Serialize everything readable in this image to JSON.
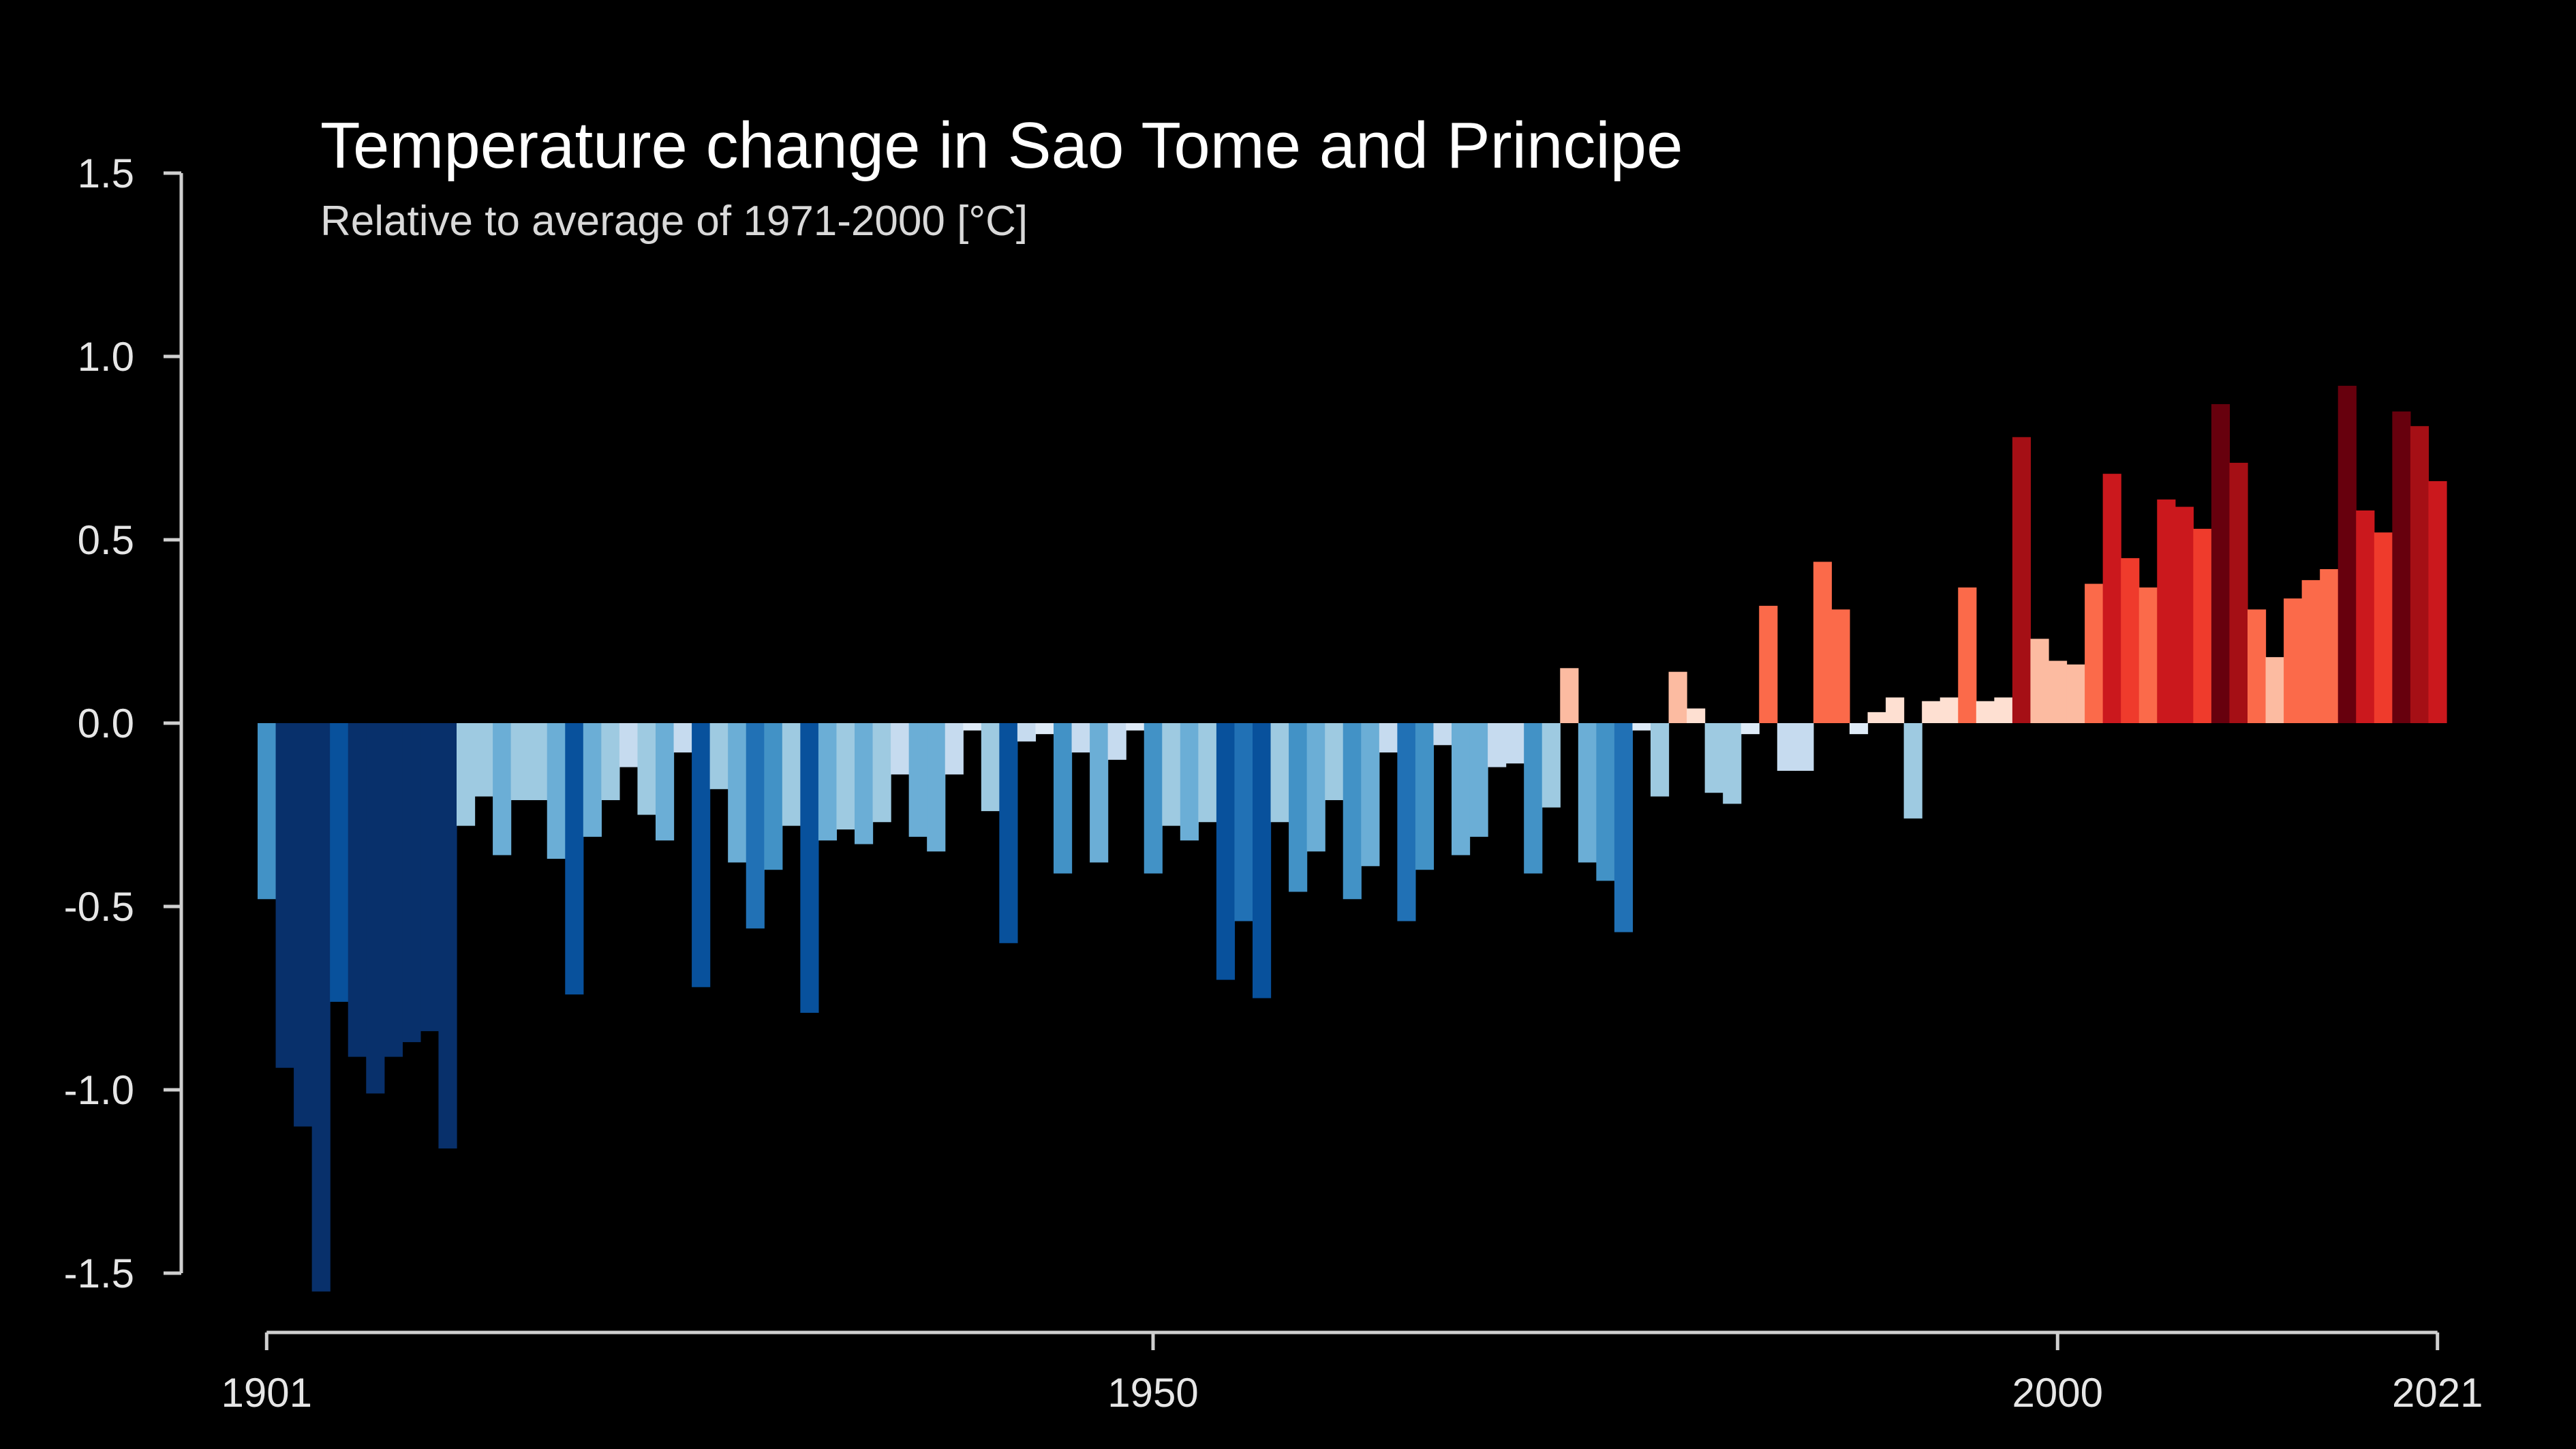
{
  "chart_data": {
    "type": "bar",
    "title": "Temperature change in Sao Tome and Principe",
    "subtitle": "Relative to average of 1971-2000  [°C]",
    "xlabel": "",
    "ylabel": "",
    "ylim": [
      -1.5,
      1.5
    ],
    "y_ticks": [
      {
        "value": 1.5,
        "label": "1.5"
      },
      {
        "value": 1.0,
        "label": "1.0"
      },
      {
        "value": 0.5,
        "label": "0.5"
      },
      {
        "value": 0.0,
        "label": "0.0"
      },
      {
        "value": -0.5,
        "label": "-0.5"
      },
      {
        "value": -1.0,
        "label": "-1.0"
      },
      {
        "value": -1.5,
        "label": "-1.5"
      }
    ],
    "x_ticks": [
      {
        "value": 1901,
        "label": "1901"
      },
      {
        "value": 1950,
        "label": "1950"
      },
      {
        "value": 2000,
        "label": "2000"
      },
      {
        "value": 2021,
        "label": "2021"
      }
    ],
    "grid": false,
    "legend": "none",
    "color_scale": {
      "negative": [
        "#08306b",
        "#08519c",
        "#2171b5",
        "#4292c6",
        "#6baed6",
        "#9ecae1",
        "#c6dbef",
        "#deebf7"
      ],
      "positive": [
        "#fee0d2",
        "#fcbba1",
        "#fc9272",
        "#fb6a4a",
        "#ef3b2c",
        "#cb181d",
        "#a50f15",
        "#67000d"
      ]
    },
    "x": [
      1901,
      1902,
      1903,
      1904,
      1905,
      1906,
      1907,
      1908,
      1909,
      1910,
      1911,
      1912,
      1913,
      1914,
      1915,
      1916,
      1917,
      1918,
      1919,
      1920,
      1921,
      1922,
      1923,
      1924,
      1925,
      1926,
      1927,
      1928,
      1929,
      1930,
      1931,
      1932,
      1933,
      1934,
      1935,
      1936,
      1937,
      1938,
      1939,
      1940,
      1941,
      1942,
      1943,
      1944,
      1945,
      1946,
      1947,
      1948,
      1949,
      1950,
      1951,
      1952,
      1953,
      1954,
      1955,
      1956,
      1957,
      1958,
      1959,
      1960,
      1961,
      1962,
      1963,
      1964,
      1965,
      1966,
      1967,
      1968,
      1969,
      1970,
      1971,
      1972,
      1973,
      1974,
      1975,
      1976,
      1977,
      1978,
      1979,
      1980,
      1981,
      1982,
      1983,
      1984,
      1985,
      1986,
      1987,
      1988,
      1989,
      1990,
      1991,
      1992,
      1993,
      1994,
      1995,
      1996,
      1997,
      1998,
      1999,
      2000,
      2001,
      2002,
      2003,
      2004,
      2005,
      2006,
      2007,
      2008,
      2009,
      2010,
      2011,
      2012,
      2013,
      2014,
      2015,
      2016,
      2017,
      2018,
      2019,
      2020,
      2021
    ],
    "values": [
      -0.48,
      -0.94,
      -1.1,
      -1.55,
      -0.76,
      -0.91,
      -1.01,
      -0.91,
      -0.87,
      -0.84,
      -1.16,
      -0.28,
      -0.2,
      -0.36,
      -0.21,
      -0.21,
      -0.37,
      -0.74,
      -0.31,
      -0.21,
      -0.12,
      -0.25,
      -0.32,
      -0.08,
      -0.72,
      -0.18,
      -0.38,
      -0.56,
      -0.4,
      -0.28,
      -0.79,
      -0.32,
      -0.29,
      -0.33,
      -0.27,
      -0.14,
      -0.31,
      -0.35,
      -0.14,
      -0.02,
      -0.24,
      -0.6,
      -0.05,
      -0.03,
      -0.41,
      -0.08,
      -0.38,
      -0.1,
      -0.02,
      -0.41,
      -0.28,
      -0.32,
      -0.27,
      -0.7,
      -0.54,
      -0.75,
      -0.27,
      -0.46,
      -0.35,
      -0.21,
      -0.48,
      -0.39,
      -0.08,
      -0.54,
      -0.4,
      -0.06,
      -0.36,
      -0.31,
      -0.12,
      -0.11,
      -0.41,
      -0.23,
      0.15,
      -0.38,
      -0.43,
      -0.57,
      -0.02,
      -0.2,
      0.14,
      0.04,
      -0.19,
      -0.22,
      -0.03,
      0.32,
      -0.13,
      -0.13,
      0.44,
      0.31,
      -0.03,
      0.03,
      0.07,
      -0.26,
      0.06,
      0.07,
      0.37,
      0.06,
      0.07,
      0.78,
      0.23,
      0.17,
      0.16,
      0.38,
      0.68,
      0.45,
      0.37,
      0.61,
      0.59,
      0.53,
      0.87,
      0.71,
      0.31,
      0.18,
      0.34,
      0.39,
      0.42,
      0.92,
      0.58,
      0.52,
      0.85,
      0.81,
      0.66
    ]
  }
}
